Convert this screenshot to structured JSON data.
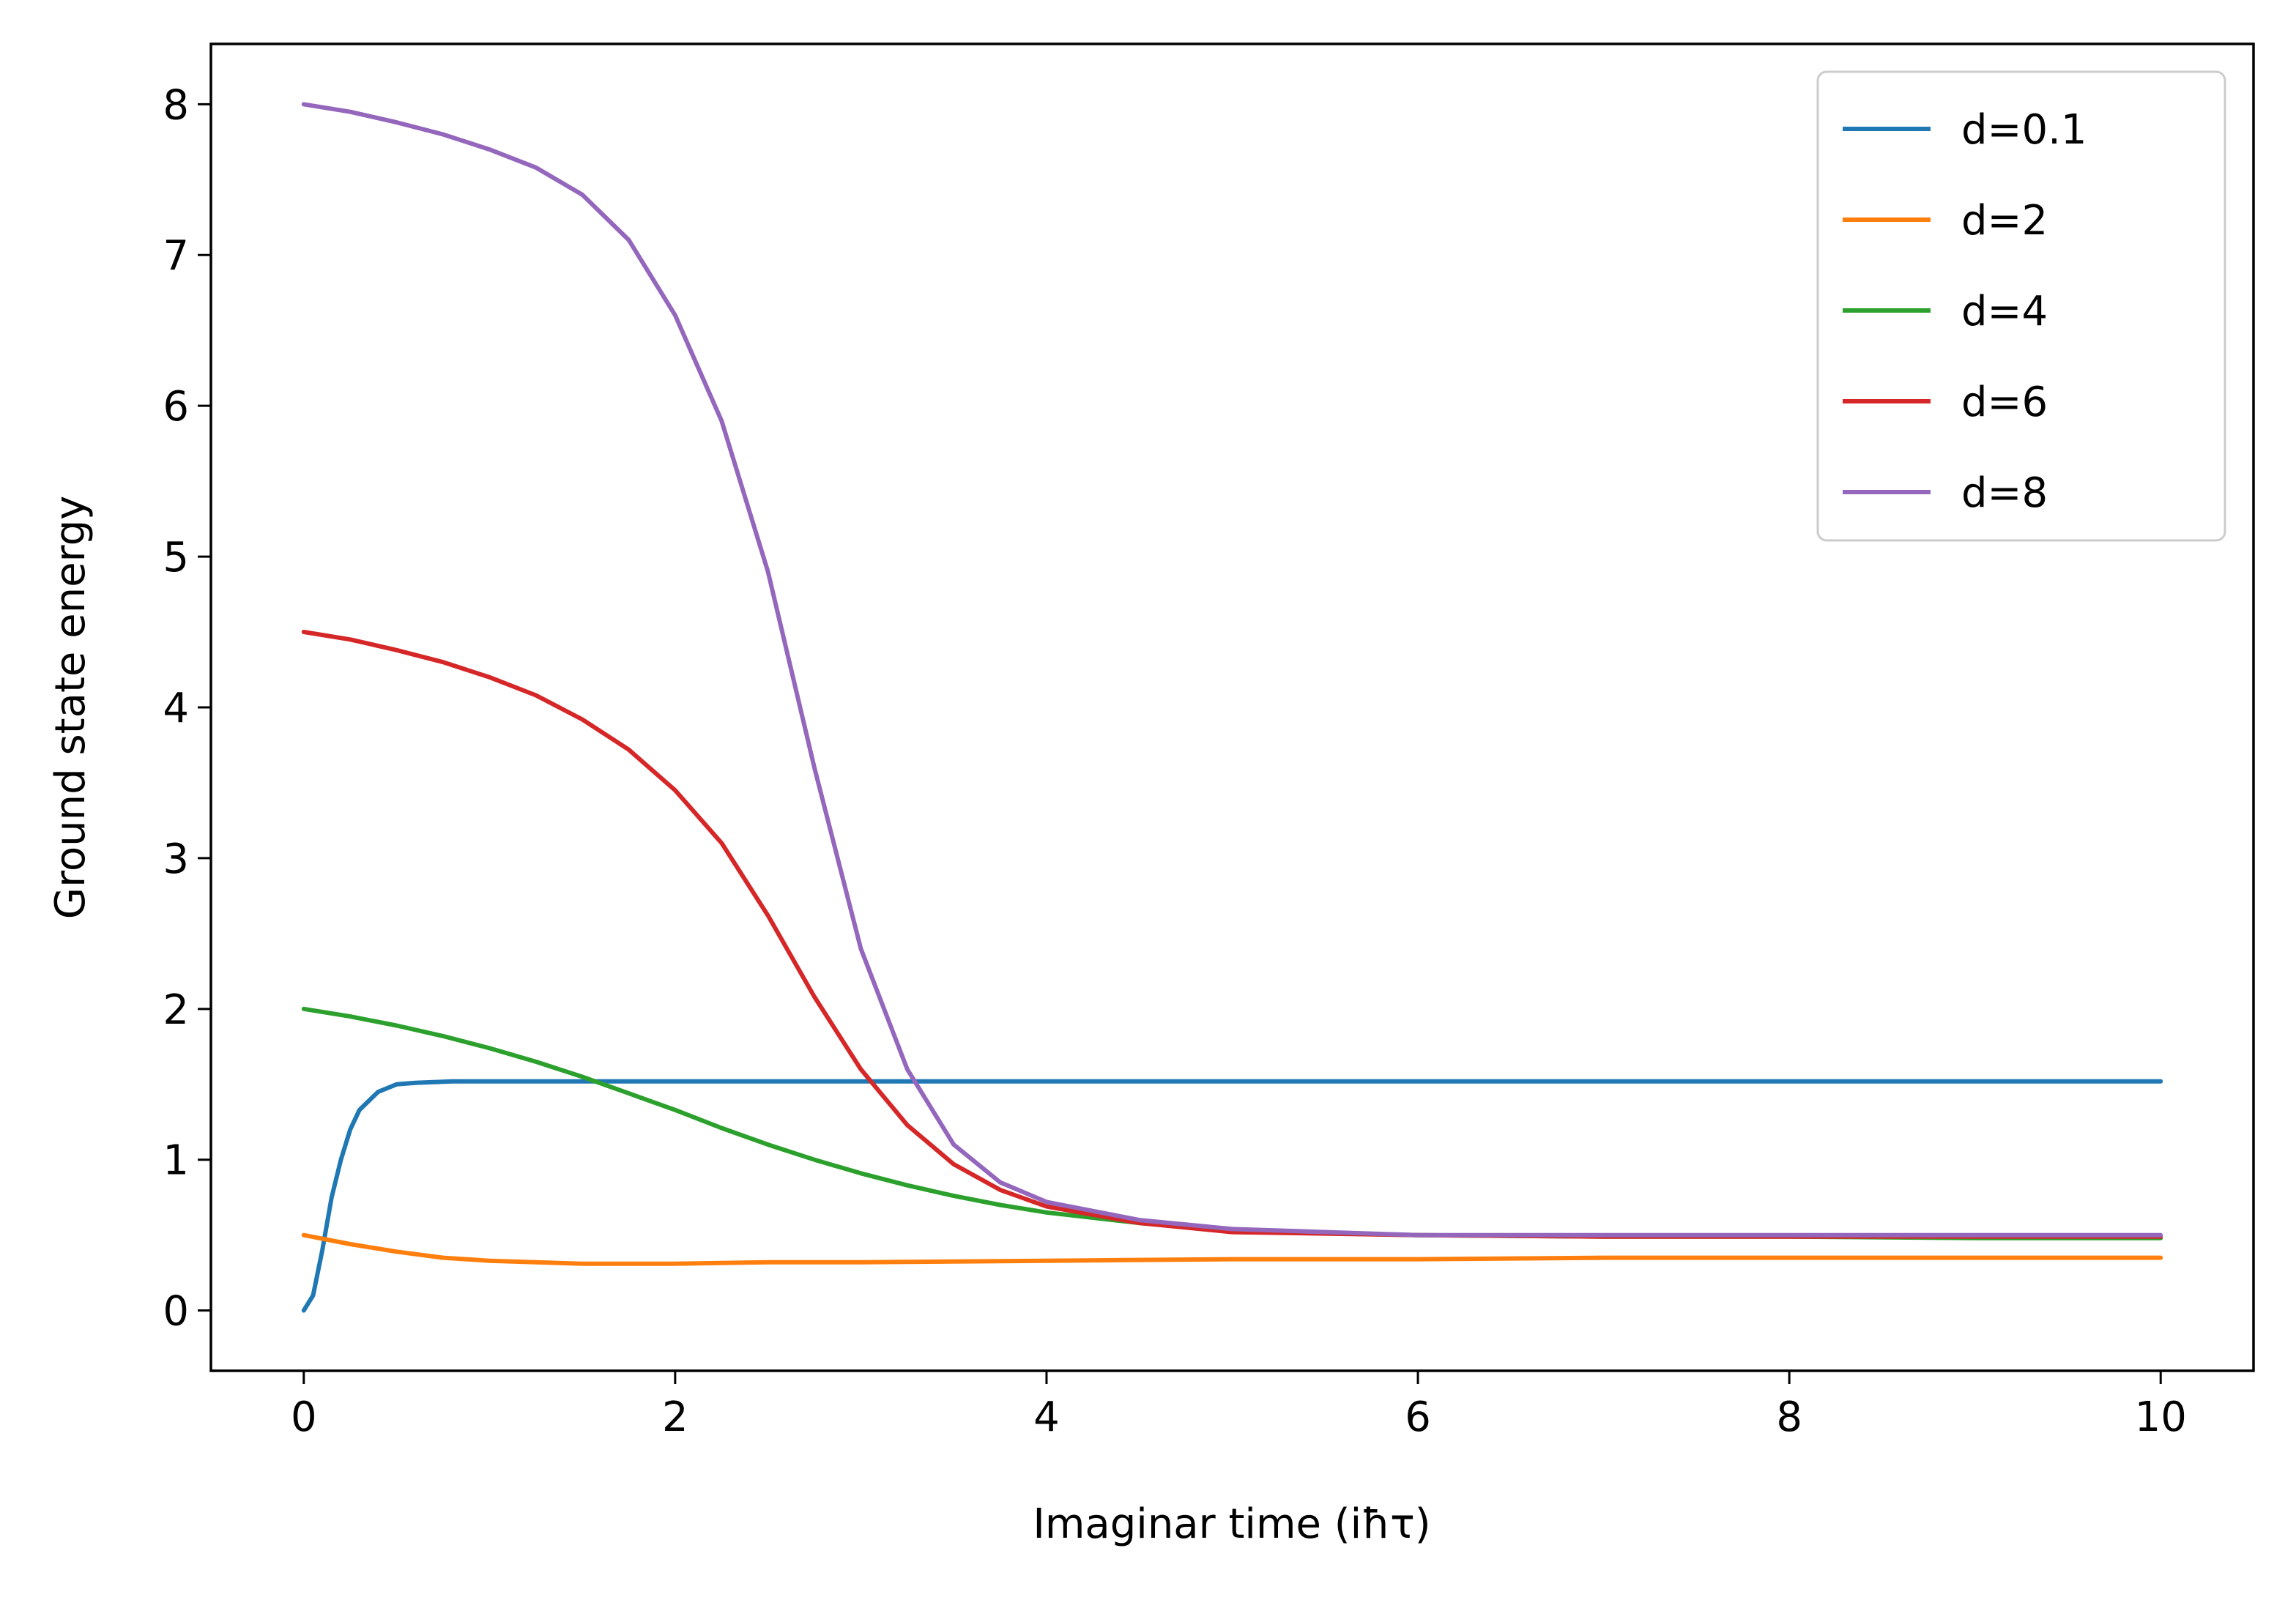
{
  "chart_data": {
    "type": "line",
    "title": "",
    "xlabel": "Imaginar time (iħτ)",
    "ylabel": "Ground state energy",
    "xlim": [
      -0.5,
      10.5
    ],
    "ylim": [
      -0.4,
      8.4
    ],
    "xticks": [
      0,
      2,
      4,
      6,
      8,
      10
    ],
    "yticks": [
      0,
      1,
      2,
      3,
      4,
      5,
      6,
      7,
      8
    ],
    "grid": false,
    "legend_position": "top-right",
    "series": [
      {
        "name": "d=0.1",
        "color": "#1f77b4",
        "x": [
          0,
          0.05,
          0.1,
          0.15,
          0.2,
          0.25,
          0.3,
          0.4,
          0.5,
          0.6,
          0.8,
          1.0,
          1.5,
          2,
          3,
          4,
          5,
          6,
          7,
          8,
          9,
          10
        ],
        "y": [
          0.0,
          0.1,
          0.4,
          0.75,
          1.0,
          1.2,
          1.33,
          1.45,
          1.5,
          1.51,
          1.52,
          1.52,
          1.52,
          1.52,
          1.52,
          1.52,
          1.52,
          1.52,
          1.52,
          1.52,
          1.52,
          1.52
        ]
      },
      {
        "name": "d=2",
        "color": "#ff7f0e",
        "x": [
          0,
          0.25,
          0.5,
          0.75,
          1.0,
          1.25,
          1.5,
          1.75,
          2,
          2.5,
          3,
          4,
          5,
          6,
          7,
          8,
          9,
          10
        ],
        "y": [
          0.5,
          0.44,
          0.39,
          0.35,
          0.33,
          0.32,
          0.31,
          0.31,
          0.31,
          0.32,
          0.32,
          0.33,
          0.34,
          0.34,
          0.35,
          0.35,
          0.35,
          0.35
        ]
      },
      {
        "name": "d=4",
        "color": "#2ca02c",
        "x": [
          0,
          0.25,
          0.5,
          0.75,
          1.0,
          1.25,
          1.5,
          1.75,
          2.0,
          2.25,
          2.5,
          2.75,
          3.0,
          3.25,
          3.5,
          3.75,
          4.0,
          4.5,
          5,
          6,
          7,
          8,
          9,
          10
        ],
        "y": [
          2.0,
          1.95,
          1.89,
          1.82,
          1.74,
          1.65,
          1.55,
          1.44,
          1.33,
          1.21,
          1.1,
          1.0,
          0.91,
          0.83,
          0.76,
          0.7,
          0.65,
          0.58,
          0.53,
          0.5,
          0.49,
          0.49,
          0.48,
          0.48
        ]
      },
      {
        "name": "d=6",
        "color": "#d62728",
        "x": [
          0,
          0.25,
          0.5,
          0.75,
          1.0,
          1.25,
          1.5,
          1.75,
          2.0,
          2.25,
          2.5,
          2.75,
          3.0,
          3.25,
          3.5,
          3.75,
          4.0,
          4.5,
          5,
          6,
          7,
          8,
          9,
          10
        ],
        "y": [
          4.5,
          4.45,
          4.38,
          4.3,
          4.2,
          4.08,
          3.92,
          3.72,
          3.45,
          3.1,
          2.62,
          2.08,
          1.6,
          1.23,
          0.97,
          0.8,
          0.69,
          0.58,
          0.52,
          0.5,
          0.49,
          0.49,
          0.49,
          0.49
        ]
      },
      {
        "name": "d=8",
        "color": "#9467bd",
        "x": [
          0,
          0.25,
          0.5,
          0.75,
          1.0,
          1.25,
          1.5,
          1.75,
          2.0,
          2.25,
          2.5,
          2.75,
          3.0,
          3.25,
          3.5,
          3.75,
          4.0,
          4.5,
          5,
          6,
          7,
          8,
          9,
          10
        ],
        "y": [
          8.0,
          7.95,
          7.88,
          7.8,
          7.7,
          7.58,
          7.4,
          7.1,
          6.6,
          5.9,
          4.9,
          3.6,
          2.4,
          1.6,
          1.1,
          0.85,
          0.72,
          0.6,
          0.54,
          0.5,
          0.5,
          0.5,
          0.5,
          0.5
        ]
      }
    ]
  }
}
